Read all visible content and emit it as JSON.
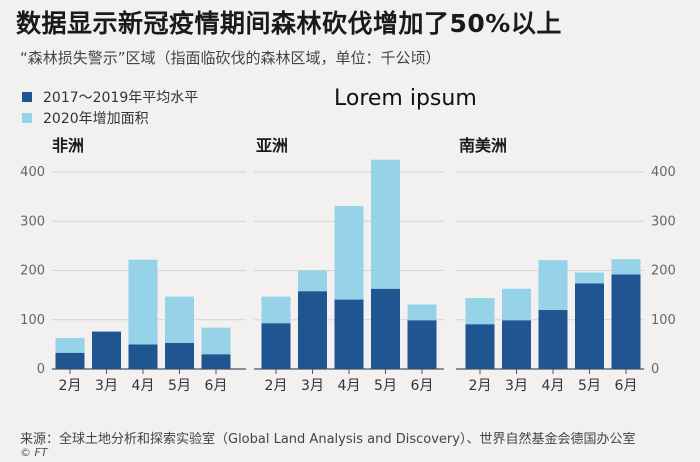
{
  "header": {
    "title": "数据显示新冠疫情期间森林砍伐增加了50%以上",
    "subtitle": "“森林损失警示”区域（指面临砍伐的森林区域，单位：千公顷）"
  },
  "overlay_text": "Lorem ipsum",
  "footer": {
    "source": "来源：全球土地分析和探索实验室（Global Land Analysis and Discovery）、世界自然基金会德国办公室",
    "copyright": "© FT"
  },
  "colors": {
    "avg": "#1f5591",
    "extra": "#96d3e9",
    "background": "#f2f1ef",
    "gridline": "#d6d3cf"
  },
  "chart_data": {
    "type": "bar",
    "stacked": true,
    "ylim": [
      0,
      400
    ],
    "yticks": [
      0,
      100,
      200,
      300,
      400
    ],
    "left_axis": true,
    "right_axis": true,
    "grid": true,
    "legend_placement": "top-left",
    "categories": [
      "2月",
      "3月",
      "4月",
      "5月",
      "6月"
    ],
    "series_names": [
      "2017～2019年平均水平",
      "2020年增加面积"
    ],
    "panels": [
      {
        "title": "非洲",
        "series": [
          {
            "name": "2017～2019年平均水平",
            "values": [
              33,
              76,
              50,
              53,
              30
            ]
          },
          {
            "name": "2020年增加面积",
            "values": [
              30,
              0,
              172,
              94,
              54
            ]
          }
        ]
      },
      {
        "title": "亚洲",
        "series": [
          {
            "name": "2017～2019年平均水平",
            "values": [
              93,
              158,
              141,
              163,
              99
            ]
          },
          {
            "name": "2020年增加面积",
            "values": [
              54,
              42,
              190,
              262,
              32
            ]
          }
        ]
      },
      {
        "title": "南美洲",
        "series": [
          {
            "name": "2017～2019年平均水平",
            "values": [
              91,
              99,
              120,
              174,
              192
            ]
          },
          {
            "name": "2020年增加面积",
            "values": [
              53,
              64,
              101,
              22,
              31
            ]
          }
        ]
      }
    ]
  }
}
